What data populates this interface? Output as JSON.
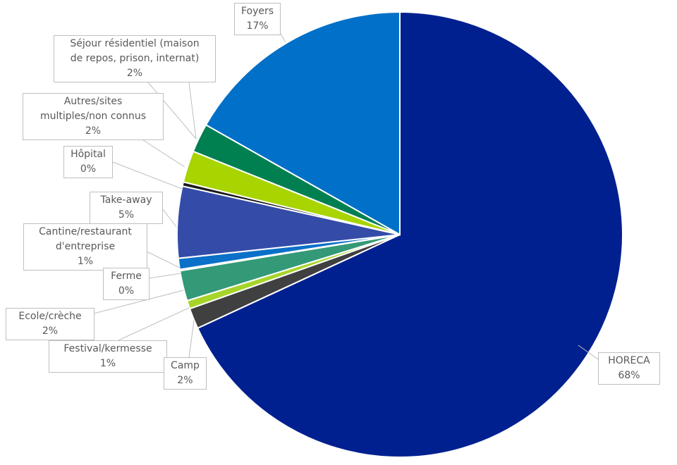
{
  "chart_data": {
    "type": "pie",
    "title": "",
    "start_angle_deg": 0,
    "direction": "clockwise",
    "slices": [
      {
        "label": "HORECA",
        "value": 68.1,
        "display": "68%",
        "color": "#00208f"
      },
      {
        "label": "Camp",
        "value": 1.5,
        "display": "2%",
        "color": "#404040"
      },
      {
        "label": "Festival/kermesse",
        "value": 0.6,
        "display": "1%",
        "color": "#a6d42a"
      },
      {
        "label": "Ecole/crèche",
        "value": 2.2,
        "display": "2%",
        "color": "#339977"
      },
      {
        "label": "Ferme",
        "value": 0.1,
        "display": "0%",
        "color": "#2e8b57"
      },
      {
        "label": "Cantine/restaurant d'entreprise",
        "value": 0.8,
        "display": "1%",
        "color": "#0a70c8"
      },
      {
        "label": "Take-away",
        "value": 5.2,
        "display": "5%",
        "color": "#344ca8"
      },
      {
        "label": "Hôpital",
        "value": 0.3,
        "display": "0%",
        "color": "#1a1a1a"
      },
      {
        "label": "Autres/sites multiples/non connus",
        "value": 2.3,
        "display": "2%",
        "color": "#a8d400"
      },
      {
        "label": "Séjour résidentiel (maison de repos, prison, internat)",
        "value": 2.1,
        "display": "2%",
        "color": "#008050"
      },
      {
        "label": "Foyers",
        "value": 16.8,
        "display": "17%",
        "color": "#0070c8"
      }
    ],
    "label_lines": {
      "cantine": [
        "Cantine/restaurant",
        "d'entreprise"
      ],
      "autres": [
        "Autres/sites",
        "multiples/non connus"
      ],
      "sejour": [
        "Séjour résidentiel (maison",
        "de repos, prison, internat)"
      ]
    }
  }
}
